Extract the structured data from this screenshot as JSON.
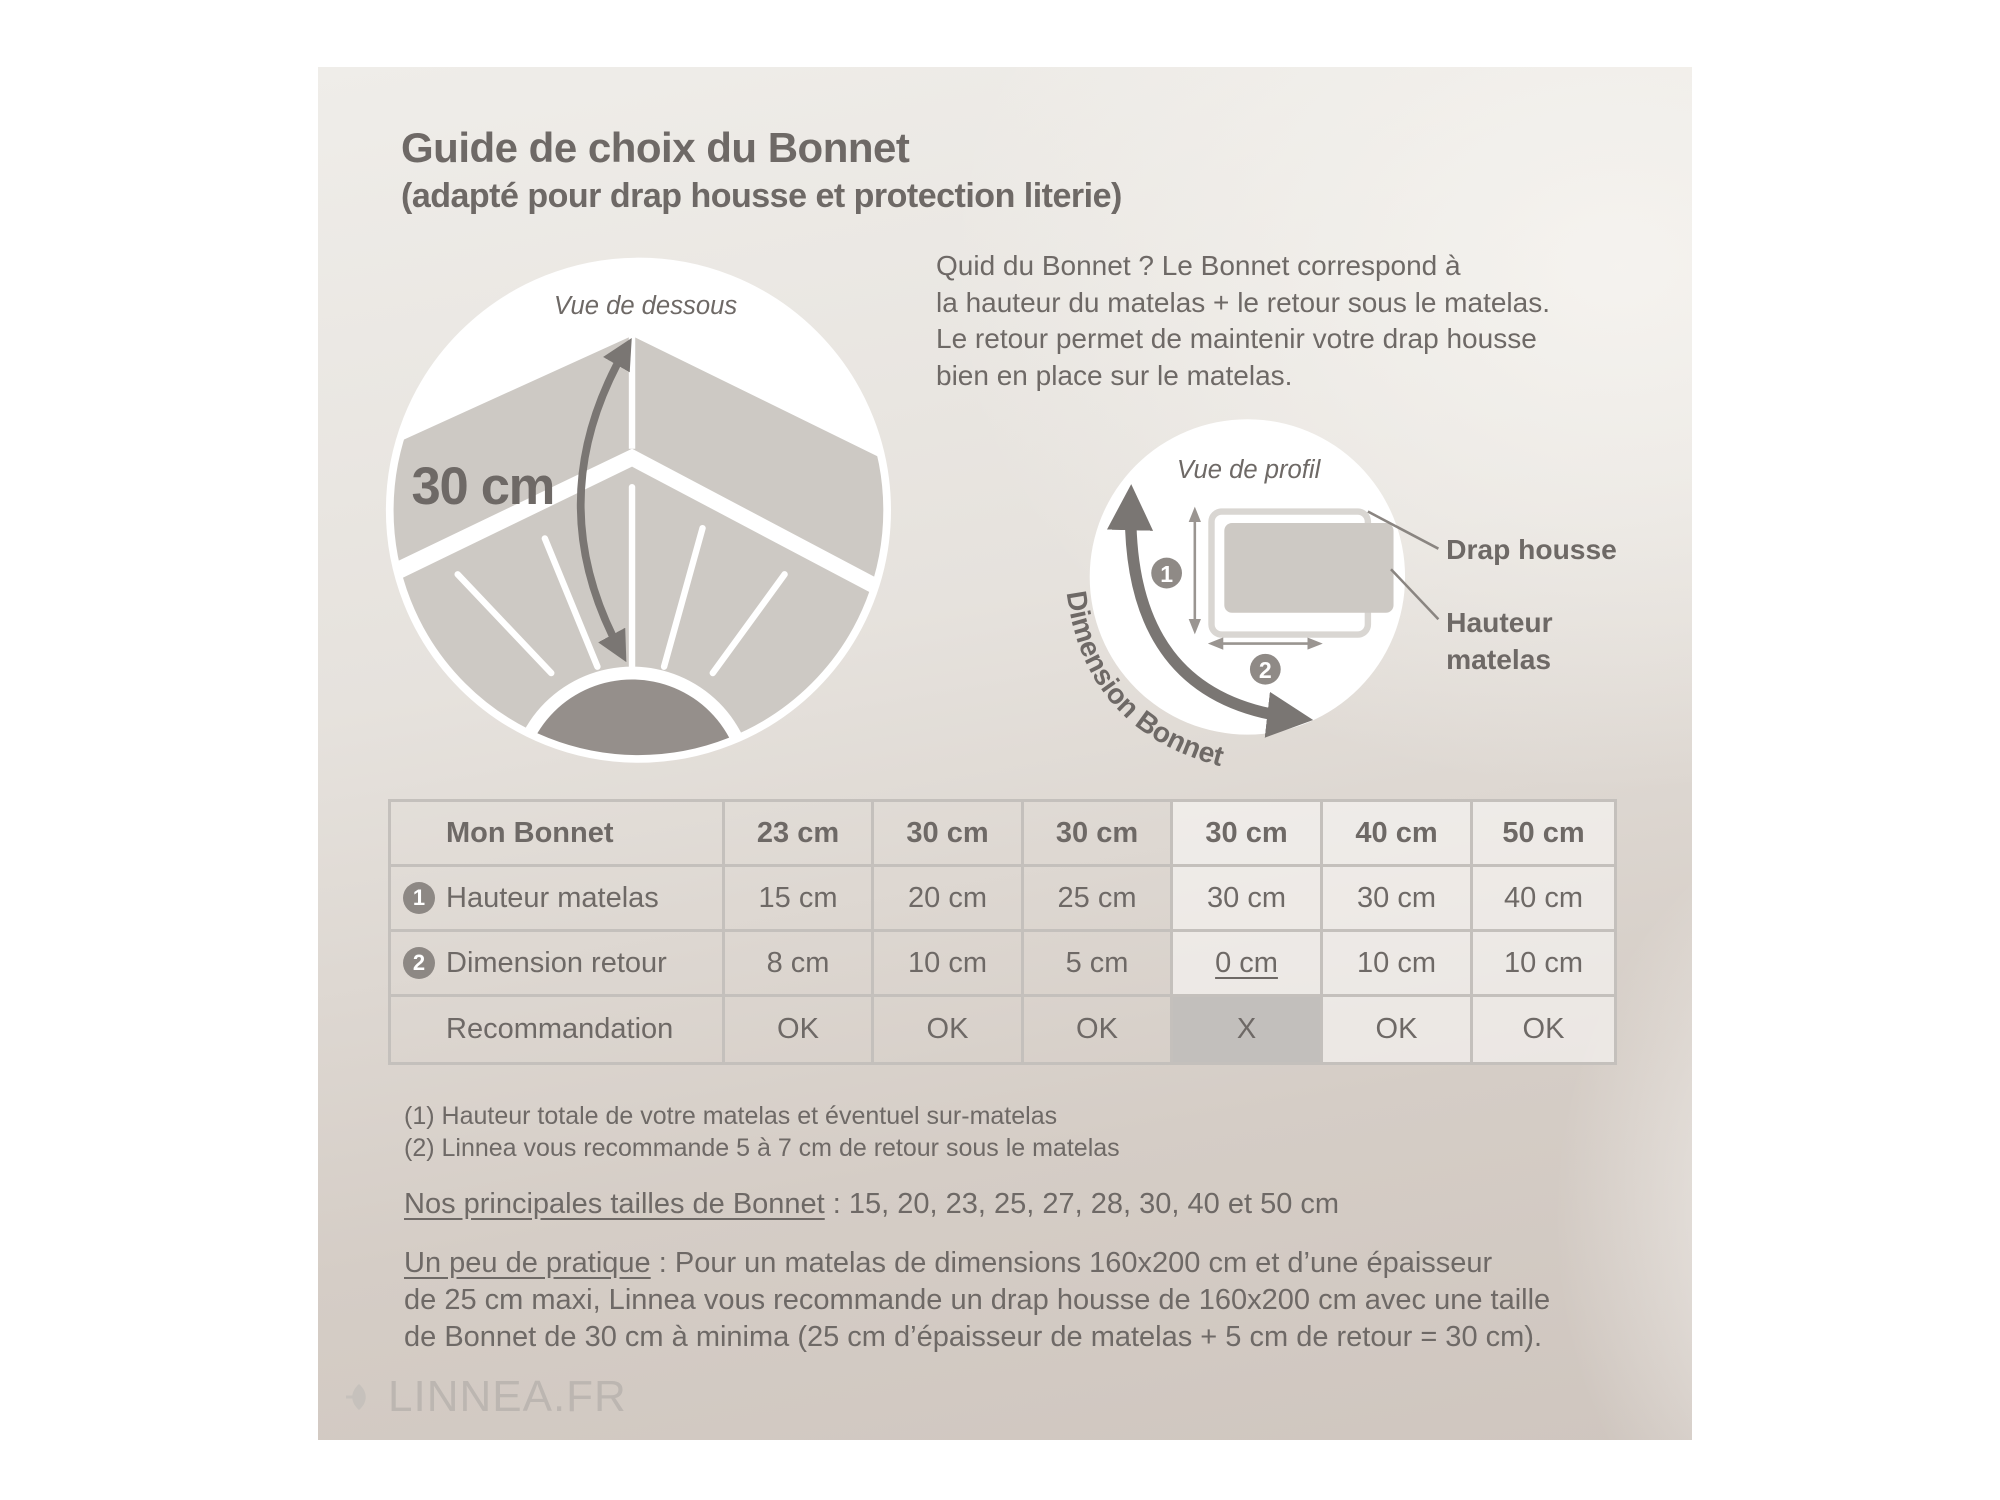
{
  "title": "Guide de choix du Bonnet",
  "subtitle": "(adapté pour drap housse et protection literie)",
  "intro": [
    "Quid du Bonnet ? Le Bonnet correspond à",
    "la hauteur du matelas + le retour sous le matelas.",
    "Le retour permet de maintenir votre drap housse",
    "bien en place sur le matelas."
  ],
  "illustration_bottom": {
    "caption": "Vue de dessous",
    "measure": "30 cm"
  },
  "illustration_profile": {
    "caption": "Vue de profil",
    "arrow_label": "Dimension Bonnet",
    "badge_1": "1",
    "badge_2": "2",
    "label_sheet": "Drap housse",
    "label_height_1": "Hauteur",
    "label_height_2": "matelas"
  },
  "table": {
    "header": {
      "label": "Mon Bonnet",
      "values": [
        "23 cm",
        "30 cm",
        "30 cm",
        "30 cm",
        "40 cm",
        "50 cm"
      ]
    },
    "rows": [
      {
        "badge": "1",
        "label": "Hauteur matelas",
        "values": [
          "15 cm",
          "20 cm",
          "25 cm",
          "30 cm",
          "30 cm",
          "40 cm"
        ]
      },
      {
        "badge": "2",
        "label": "Dimension retour",
        "values": [
          "8 cm",
          "10 cm",
          "5 cm",
          "0 cm",
          "10 cm",
          "10 cm"
        ]
      },
      {
        "badge": "",
        "label": "Recommandation",
        "values": [
          "OK",
          "OK",
          "OK",
          "X",
          "OK",
          "OK"
        ]
      }
    ],
    "highlight_color": "#c2bfbc"
  },
  "notes": [
    {
      "mark": "(1)",
      "text": " Hauteur totale de votre matelas et éventuel sur-matelas"
    },
    {
      "mark": "(2)",
      "text": " Linnea vous recommande 5 à 7 cm de retour sous le matelas"
    }
  ],
  "sizes": {
    "label": "Nos principales tailles de Bonnet",
    "text": " : 15, 20, 23, 25, 27, 28, 30, 40 et 50 cm"
  },
  "practice": {
    "label": "Un peu de pratique",
    "line1": " : Pour un matelas de dimensions 160x200 cm et d’une épaisseur",
    "line2": "de 25 cm maxi, Linnea vous recommande un drap housse de 160x200 cm avec une taille",
    "line3": "de Bonnet de 30 cm à minima (25 cm d’épaisseur de matelas + 5 cm de retour = 30 cm)."
  },
  "logo": "LINNEA.FR",
  "colors": {
    "text": "#6e6966",
    "panel": "#cdc9c4",
    "arrow": "#7a7673",
    "border": "#c4c0bc"
  }
}
